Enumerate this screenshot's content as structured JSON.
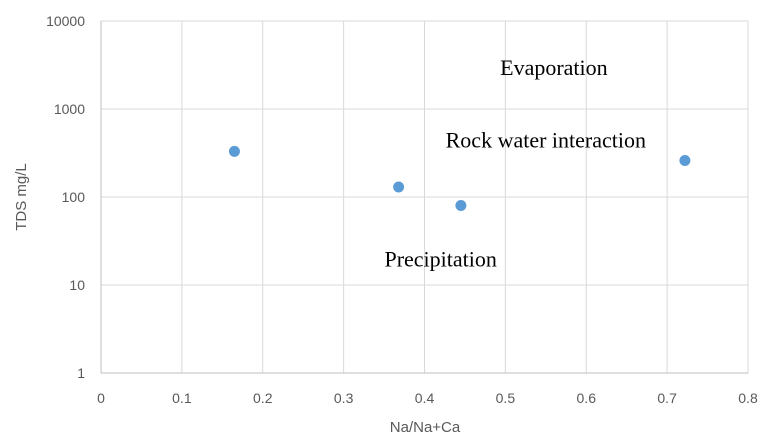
{
  "chart_data": {
    "type": "scatter",
    "title": "",
    "xlabel": "Na/Na+Ca",
    "ylabel": "TDS mg/L",
    "xlim": [
      0,
      0.8
    ],
    "ylim": [
      1,
      10000
    ],
    "y_scale": "log",
    "x_ticks": [
      "0",
      "0.1",
      "0.2",
      "0.3",
      "0.4",
      "0.5",
      "0.6",
      "0.7",
      "0.8"
    ],
    "y_ticks": [
      "1",
      "10",
      "100",
      "1000",
      "10000"
    ],
    "grid": true,
    "legend": "none",
    "marker_color": "#5B9BD5",
    "series": [
      {
        "points": [
          {
            "x": 0.165,
            "y": 330
          },
          {
            "x": 0.368,
            "y": 130
          },
          {
            "x": 0.445,
            "y": 80
          },
          {
            "x": 0.722,
            "y": 260
          }
        ]
      }
    ],
    "annotations": [
      {
        "text": "Evaporation",
        "x": 0.56,
        "y": 3000
      },
      {
        "text": "Rock water interaction",
        "x": 0.55,
        "y": 450
      },
      {
        "text": "Precipitation",
        "x": 0.42,
        "y": 20
      }
    ]
  }
}
